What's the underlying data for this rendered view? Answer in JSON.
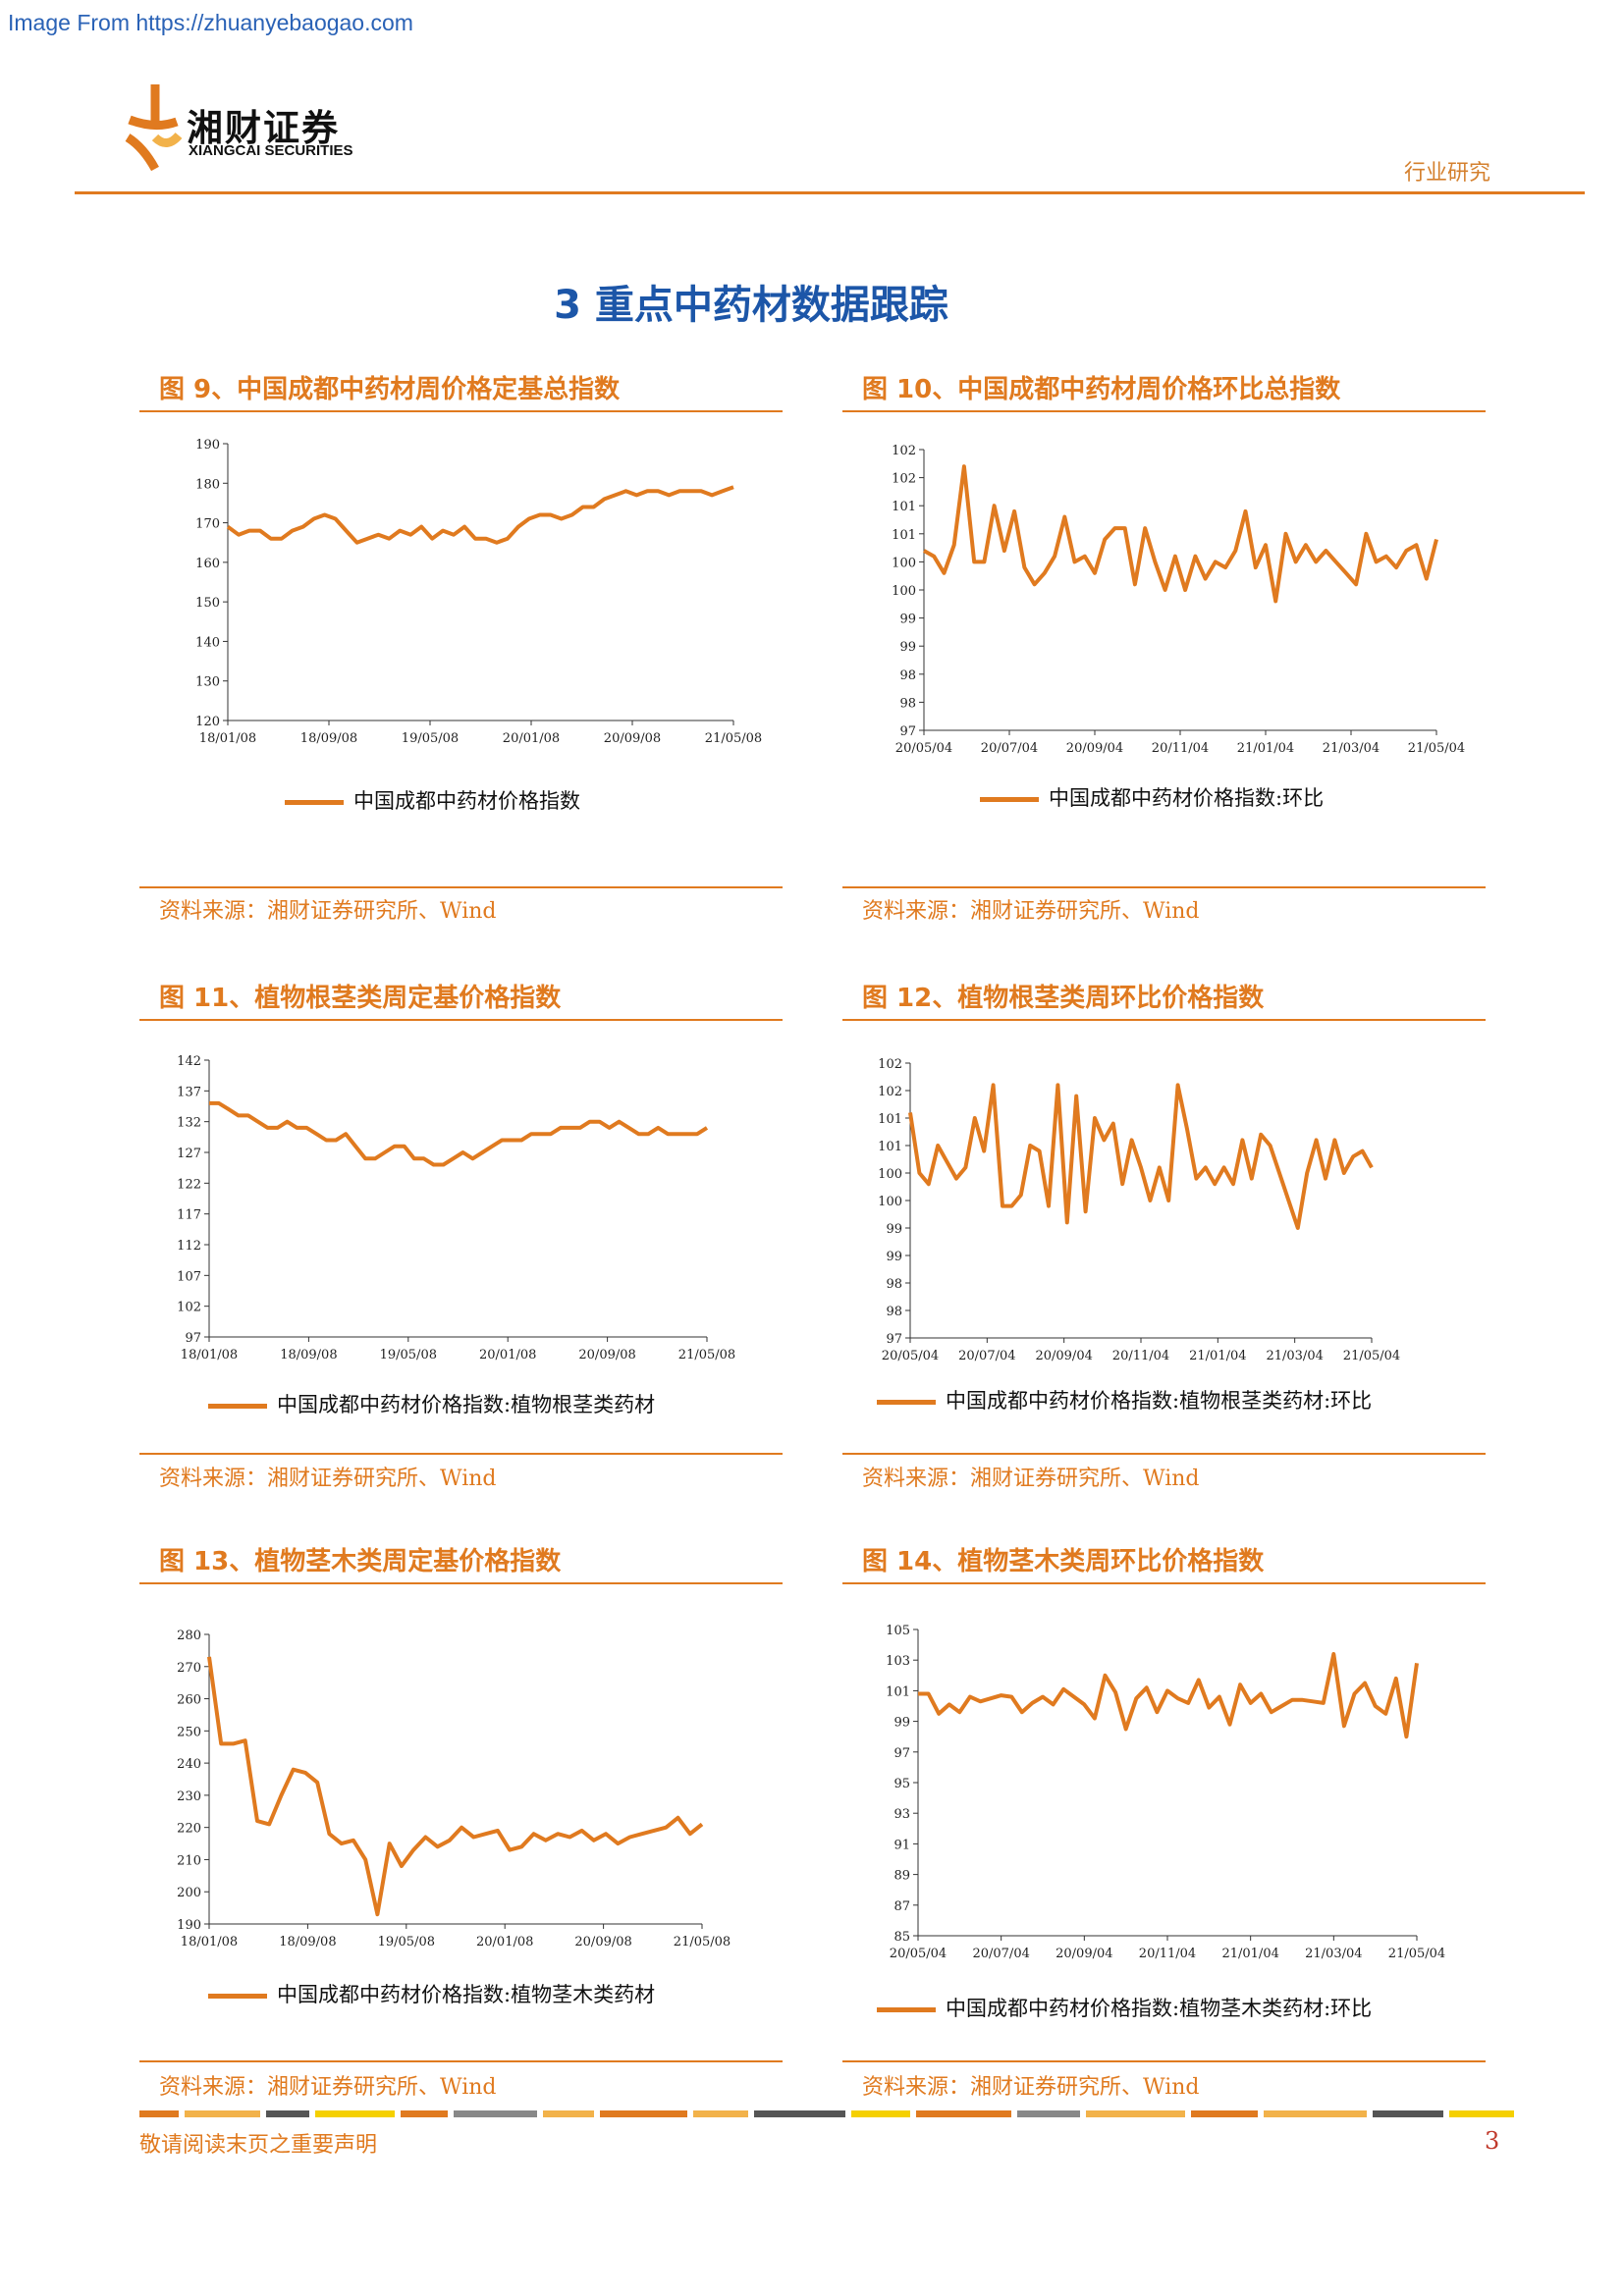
{
  "header": {
    "watermark": "Image From https://zhuanyebaogao.com",
    "logo_cn": "湘财证券",
    "logo_en": "XIANGCAI SECURITIES",
    "category": "行业研究",
    "accent": "#e07a1f"
  },
  "section_title": "3 重点中药材数据跟踪",
  "figures": [
    {
      "title": "图 9、中国成都中药材周价格定基总指数",
      "legend": "中国成都中药材价格指数",
      "source": "资料来源：湘财证券研究所、Wind"
    },
    {
      "title": "图 10、中国成都中药材周价格环比总指数",
      "legend": "中国成都中药材价格指数:环比",
      "source": "资料来源：湘财证券研究所、Wind"
    },
    {
      "title": "图 11、植物根茎类周定基价格指数",
      "legend": "中国成都中药材价格指数:植物根茎类药材",
      "source": "资料来源：湘财证券研究所、Wind"
    },
    {
      "title": "图 12、植物根茎类周环比价格指数",
      "legend": "中国成都中药材价格指数:植物根茎类药材:环比",
      "source": "资料来源：湘财证券研究所、Wind"
    },
    {
      "title": "图 13、植物茎木类周定基价格指数",
      "legend": "中国成都中药材价格指数:植物茎木类药材",
      "source": "资料来源：湘财证券研究所、Wind"
    },
    {
      "title": "图 14、植物茎木类周环比价格指数",
      "legend": "中国成都中药材价格指数:植物茎木类药材:环比",
      "source": "资料来源：湘财证券研究所、Wind"
    }
  ],
  "footer": {
    "disclaimer": "敬请阅读末页之重要声明",
    "page": "3"
  },
  "chart_data": [
    {
      "type": "line",
      "x_ticks": [
        "18/01/08",
        "18/09/08",
        "19/05/08",
        "20/01/08",
        "20/09/08",
        "21/05/08"
      ],
      "y_ticks": [
        "120",
        "130",
        "140",
        "150",
        "160",
        "170",
        "180",
        "190"
      ],
      "ylim": [
        120,
        190
      ],
      "series": [
        {
          "name": "中国成都中药材价格指数",
          "values": [
            169,
            167,
            168,
            168,
            166,
            166,
            168,
            169,
            171,
            172,
            171,
            168,
            165,
            166,
            167,
            166,
            168,
            167,
            169,
            166,
            168,
            167,
            169,
            166,
            166,
            165,
            166,
            169,
            171,
            172,
            172,
            171,
            172,
            174,
            174,
            176,
            177,
            178,
            177,
            178,
            178,
            177,
            178,
            178,
            178,
            177,
            178,
            179
          ]
        }
      ]
    },
    {
      "type": "line",
      "x_ticks": [
        "20/05/04",
        "20/07/04",
        "20/09/04",
        "20/11/04",
        "21/01/04",
        "21/03/04",
        "21/05/04"
      ],
      "y_ticks": [
        "97",
        "98",
        "98",
        "99",
        "99",
        "100",
        "100",
        "101",
        "101",
        "102",
        "102"
      ],
      "ylim": [
        97,
        102
      ],
      "series": [
        {
          "name": "中国成都中药材价格指数:环比",
          "values": [
            100.2,
            100.1,
            99.8,
            100.3,
            101.7,
            100.0,
            100.0,
            101.0,
            100.2,
            100.9,
            99.9,
            99.6,
            99.8,
            100.1,
            100.8,
            100.0,
            100.1,
            99.8,
            100.4,
            100.6,
            100.6,
            99.6,
            100.6,
            100.0,
            99.5,
            100.1,
            99.5,
            100.1,
            99.7,
            100.0,
            99.9,
            100.2,
            100.9,
            99.9,
            100.3,
            99.3,
            100.5,
            100.0,
            100.3,
            100.0,
            100.2,
            100.0,
            99.8,
            99.6,
            100.5,
            100.0,
            100.1,
            99.9,
            100.2,
            100.3,
            99.7,
            100.4
          ]
        }
      ]
    },
    {
      "type": "line",
      "x_ticks": [
        "18/01/08",
        "18/09/08",
        "19/05/08",
        "20/01/08",
        "20/09/08",
        "21/05/08"
      ],
      "y_ticks": [
        "97",
        "102",
        "107",
        "112",
        "117",
        "122",
        "127",
        "132",
        "137",
        "142"
      ],
      "ylim": [
        97,
        142
      ],
      "series": [
        {
          "name": "中国成都中药材价格指数:植物根茎类药材",
          "values": [
            135,
            135,
            134,
            133,
            133,
            132,
            131,
            131,
            132,
            131,
            131,
            130,
            129,
            129,
            130,
            128,
            126,
            126,
            127,
            128,
            128,
            126,
            126,
            125,
            125,
            126,
            127,
            126,
            127,
            128,
            129,
            129,
            129,
            130,
            130,
            130,
            131,
            131,
            131,
            132,
            132,
            131,
            132,
            131,
            130,
            130,
            131,
            130,
            130,
            130,
            130,
            131
          ]
        }
      ]
    },
    {
      "type": "line",
      "x_ticks": [
        "20/05/04",
        "20/07/04",
        "20/09/04",
        "20/11/04",
        "21/01/04",
        "21/03/04",
        "21/05/04"
      ],
      "y_ticks": [
        "97",
        "98",
        "98",
        "99",
        "99",
        "100",
        "100",
        "101",
        "101",
        "102",
        "102"
      ],
      "ylim": [
        97,
        102
      ],
      "series": [
        {
          "name": "中国成都中药材价格指数:植物根茎类药材:环比",
          "values": [
            101.1,
            100.0,
            99.8,
            100.5,
            100.2,
            99.9,
            100.1,
            101.0,
            100.4,
            101.6,
            99.4,
            99.4,
            99.6,
            100.5,
            100.4,
            99.4,
            101.6,
            99.1,
            101.4,
            99.3,
            101.0,
            100.6,
            100.9,
            99.8,
            100.6,
            100.1,
            99.5,
            100.1,
            99.5,
            101.6,
            100.8,
            99.9,
            100.1,
            99.8,
            100.1,
            99.8,
            100.6,
            99.9,
            100.7,
            100.5,
            100.0,
            99.5,
            99.0,
            100.0,
            100.6,
            99.9,
            100.6,
            100.0,
            100.3,
            100.4,
            100.1
          ]
        }
      ]
    },
    {
      "type": "line",
      "x_ticks": [
        "18/01/08",
        "18/09/08",
        "19/05/08",
        "20/01/08",
        "20/09/08",
        "21/05/08"
      ],
      "y_ticks": [
        "190",
        "200",
        "210",
        "220",
        "230",
        "240",
        "250",
        "260",
        "270",
        "280"
      ],
      "ylim": [
        190,
        280
      ],
      "series": [
        {
          "name": "中国成都中药材价格指数:植物茎木类药材",
          "values": [
            273,
            246,
            246,
            247,
            222,
            221,
            230,
            238,
            237,
            234,
            218,
            215,
            216,
            210,
            193,
            215,
            208,
            213,
            217,
            214,
            216,
            220,
            217,
            218,
            219,
            213,
            214,
            218,
            216,
            218,
            217,
            219,
            216,
            218,
            215,
            217,
            218,
            219,
            220,
            223,
            218,
            221
          ]
        }
      ]
    },
    {
      "type": "line",
      "x_ticks": [
        "20/05/04",
        "20/07/04",
        "20/09/04",
        "20/11/04",
        "21/01/04",
        "21/03/04",
        "21/05/04"
      ],
      "y_ticks": [
        "85",
        "87",
        "89",
        "91",
        "93",
        "95",
        "97",
        "99",
        "101",
        "103",
        "105"
      ],
      "ylim": [
        85,
        105
      ],
      "series": [
        {
          "name": "中国成都中药材价格指数:植物茎木类药材:环比",
          "values": [
            100.8,
            100.8,
            99.5,
            100.1,
            99.6,
            100.6,
            100.3,
            100.5,
            100.7,
            100.6,
            99.6,
            100.2,
            100.6,
            100.1,
            101.1,
            100.6,
            100.1,
            99.2,
            102.0,
            100.9,
            98.5,
            100.5,
            101.2,
            99.6,
            101.0,
            100.5,
            100.2,
            101.7,
            99.9,
            100.6,
            98.8,
            101.4,
            100.2,
            100.8,
            99.6,
            100.0,
            100.4,
            100.4,
            100.3,
            100.2,
            103.4,
            98.7,
            100.8,
            101.5,
            100.0,
            99.5,
            101.8,
            98.0,
            102.8
          ]
        }
      ]
    }
  ]
}
